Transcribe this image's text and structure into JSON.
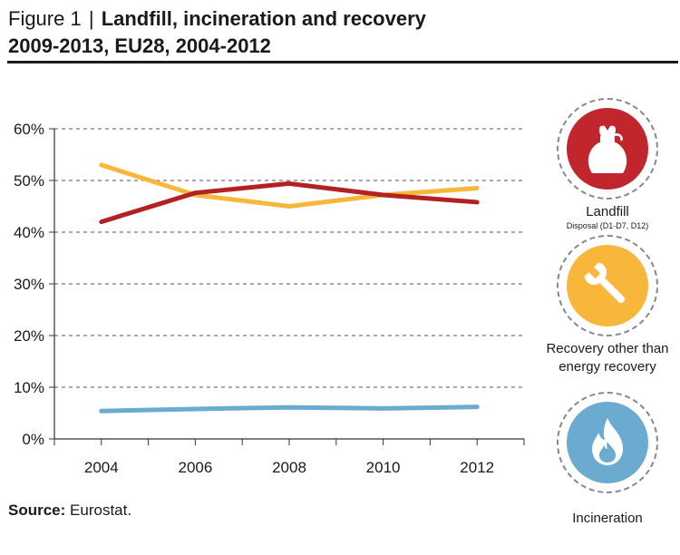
{
  "header": {
    "figure_label": "Figure 1",
    "separator": "|",
    "title_main": "Landfill, incineration and recovery",
    "title_line2": "2009-2013, EU28, 2004-2012"
  },
  "source": {
    "label": "Source:",
    "text": "Eurostat."
  },
  "chart_data": {
    "type": "line",
    "title": "",
    "xlabel": "",
    "ylabel": "",
    "x": [
      2004,
      2006,
      2008,
      2010,
      2012
    ],
    "x_tick_labels": [
      "2004",
      "2006",
      "2008",
      "2010",
      "2012"
    ],
    "ylim": [
      0,
      60
    ],
    "y_ticks": [
      0,
      10,
      20,
      30,
      40,
      50,
      60
    ],
    "y_tick_labels": [
      "0%",
      "10%",
      "20%",
      "30%",
      "40%",
      "50%",
      "60%"
    ],
    "grid": "horizontal dashed",
    "legend": "right (icons)",
    "series": [
      {
        "key": "landfill",
        "color": "#b22222",
        "values": [
          42.0,
          47.6,
          49.4,
          47.2,
          45.8
        ]
      },
      {
        "key": "recovery",
        "color": "#f8b73a",
        "values": [
          53.0,
          47.2,
          45.0,
          47.2,
          48.5
        ]
      },
      {
        "key": "incineration",
        "color": "#6aabcf",
        "values": [
          5.4,
          5.8,
          6.1,
          5.9,
          6.2
        ]
      }
    ]
  },
  "legend_icons": [
    {
      "label": "Landfill",
      "sublabel": "Disposal (D1-D7, D12)",
      "color": "#c0262b",
      "icon": "waste-sack-icon"
    },
    {
      "label": "Recovery other than energy recovery",
      "color": "#f8b73a",
      "icon": "wrench-icon"
    },
    {
      "label": "Incineration",
      "color": "#6aabcf",
      "icon": "flame-icon"
    }
  ]
}
